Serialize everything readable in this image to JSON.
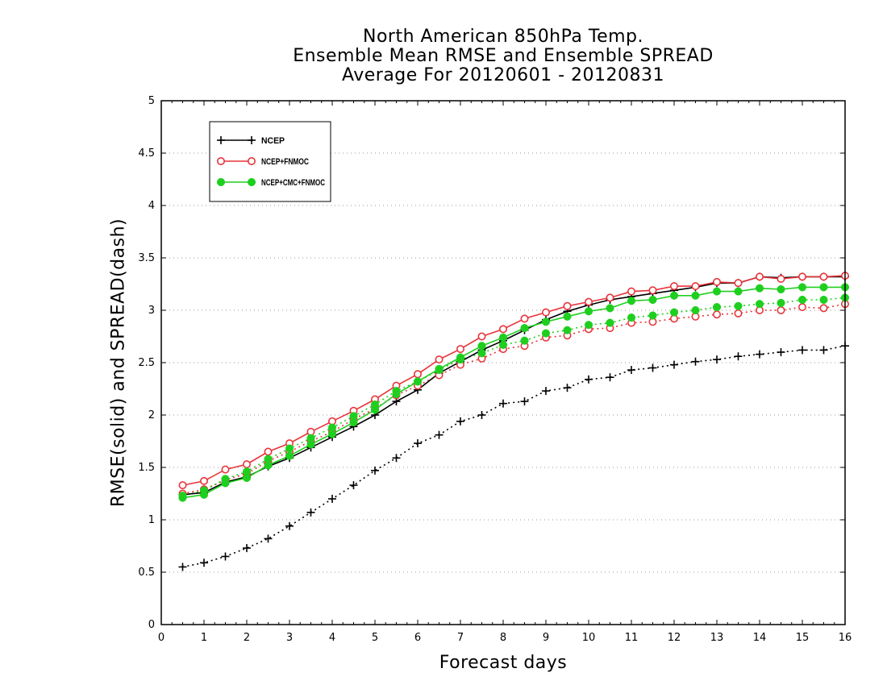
{
  "chart_data": {
    "type": "line",
    "title": [
      "North American 850hPa Temp.",
      "Ensemble Mean RMSE and Ensemble SPREAD",
      "Average For 20120601 - 20120831"
    ],
    "xlabel": "Forecast days",
    "ylabel": "RMSE(solid) and SPREAD(dash)",
    "xlim": [
      0,
      16
    ],
    "ylim": [
      0,
      5
    ],
    "xticks": [
      "0",
      "1",
      "2",
      "3",
      "4",
      "5",
      "6",
      "7",
      "8",
      "9",
      "10",
      "11",
      "12",
      "13",
      "14",
      "15",
      "16"
    ],
    "yticks": [
      "0",
      "0.5",
      "1",
      "1.5",
      "2",
      "2.5",
      "3",
      "3.5",
      "4",
      "4.5",
      "5"
    ],
    "grid": "horizontal dotted",
    "legend_position": "top-left",
    "x": [
      0.5,
      1,
      1.5,
      2,
      2.5,
      3,
      3.5,
      4,
      4.5,
      5,
      5.5,
      6,
      6.5,
      7,
      7.5,
      8,
      8.5,
      9,
      9.5,
      10,
      10.5,
      11,
      11.5,
      12,
      12.5,
      13,
      13.5,
      14,
      14.5,
      15,
      15.5,
      16
    ],
    "series": [
      {
        "name": "NCEP",
        "color": "#000000",
        "marker": "plus",
        "rmse": [
          1.24,
          1.26,
          1.36,
          1.41,
          1.51,
          1.59,
          1.69,
          1.79,
          1.89,
          2.0,
          2.13,
          2.24,
          2.4,
          2.51,
          2.62,
          2.71,
          2.81,
          2.91,
          2.99,
          3.05,
          3.1,
          3.13,
          3.16,
          3.19,
          3.22,
          3.26,
          3.26,
          3.32,
          3.31,
          3.32,
          3.32,
          3.32
        ],
        "spread": [
          0.55,
          0.59,
          0.65,
          0.73,
          0.82,
          0.94,
          1.07,
          1.2,
          1.33,
          1.47,
          1.59,
          1.73,
          1.81,
          1.94,
          2.0,
          2.11,
          2.13,
          2.23,
          2.26,
          2.34,
          2.36,
          2.43,
          2.45,
          2.48,
          2.51,
          2.53,
          2.56,
          2.58,
          2.6,
          2.62,
          2.62,
          2.66
        ]
      },
      {
        "name": "NCEP+FNMOC",
        "color": "#e8343a",
        "marker": "open-circle",
        "rmse": [
          1.33,
          1.37,
          1.48,
          1.53,
          1.65,
          1.73,
          1.84,
          1.94,
          2.04,
          2.15,
          2.28,
          2.39,
          2.53,
          2.63,
          2.75,
          2.82,
          2.92,
          2.98,
          3.04,
          3.08,
          3.12,
          3.18,
          3.19,
          3.23,
          3.23,
          3.27,
          3.26,
          3.32,
          3.3,
          3.32,
          3.32,
          3.33
        ],
        "spread": [
          1.25,
          1.29,
          1.38,
          1.44,
          1.56,
          1.65,
          1.75,
          1.84,
          1.96,
          2.06,
          2.19,
          2.28,
          2.38,
          2.48,
          2.54,
          2.63,
          2.66,
          2.74,
          2.76,
          2.82,
          2.83,
          2.88,
          2.89,
          2.92,
          2.94,
          2.96,
          2.97,
          3.0,
          3.0,
          3.03,
          3.02,
          3.06
        ]
      },
      {
        "name": "NCEP+CMC+FNMOC",
        "color": "#1fcf1f",
        "marker": "filled-circle",
        "rmse": [
          1.21,
          1.24,
          1.35,
          1.4,
          1.52,
          1.61,
          1.72,
          1.82,
          1.93,
          2.05,
          2.2,
          2.32,
          2.44,
          2.55,
          2.66,
          2.74,
          2.83,
          2.89,
          2.94,
          2.99,
          3.02,
          3.09,
          3.1,
          3.14,
          3.14,
          3.18,
          3.18,
          3.21,
          3.2,
          3.22,
          3.22,
          3.22
        ],
        "spread": [
          1.23,
          1.28,
          1.39,
          1.46,
          1.58,
          1.68,
          1.78,
          1.88,
          1.99,
          2.1,
          2.23,
          2.32,
          2.43,
          2.53,
          2.59,
          2.67,
          2.71,
          2.78,
          2.81,
          2.86,
          2.88,
          2.93,
          2.95,
          2.98,
          3.0,
          3.03,
          3.04,
          3.06,
          3.07,
          3.1,
          3.1,
          3.12
        ]
      }
    ]
  }
}
